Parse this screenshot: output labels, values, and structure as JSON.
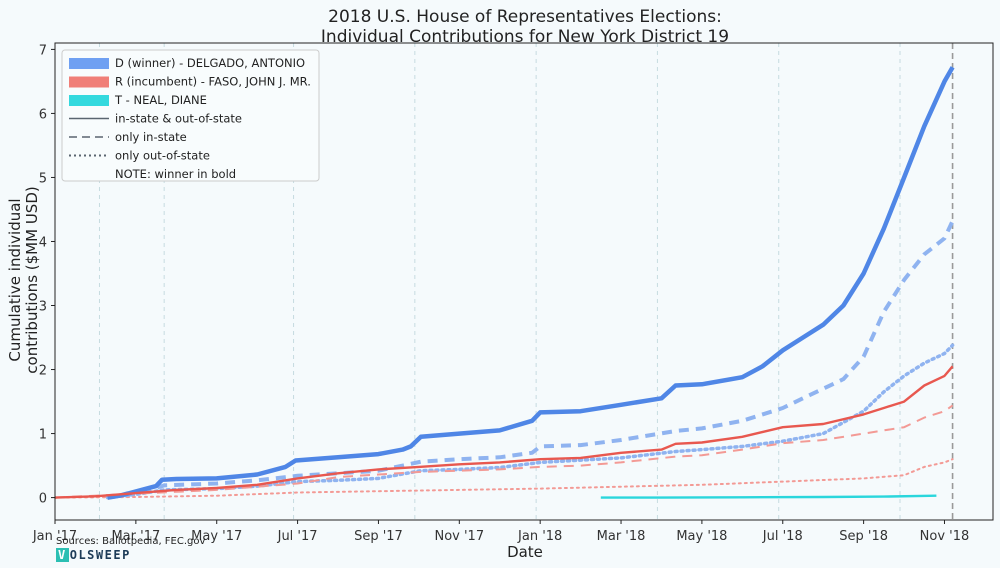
{
  "chart_data": {
    "type": "line",
    "title": "2018 U.S. House of Representatives Elections:",
    "subtitle": "Individual Contributions for New York District 19",
    "xlabel": "Date",
    "ylabel_line1": "Cumulative individual",
    "ylabel_line2": "contributions ($MM USD)",
    "ylim": [
      -0.35,
      7.1
    ],
    "xlim_months": [
      0,
      23.2
    ],
    "x_unit": "months since Jan 1 2017",
    "x_ticks": [
      {
        "label": "Jan '17",
        "m": 0
      },
      {
        "label": "Mar '17",
        "m": 2
      },
      {
        "label": "May '17",
        "m": 4
      },
      {
        "label": "Jul '17",
        "m": 6
      },
      {
        "label": "Sep '17",
        "m": 8
      },
      {
        "label": "Nov '17",
        "m": 10
      },
      {
        "label": "Jan '18",
        "m": 12
      },
      {
        "label": "Mar '18",
        "m": 14
      },
      {
        "label": "May '18",
        "m": 16
      },
      {
        "label": "Jul '18",
        "m": 18
      },
      {
        "label": "Sep '18",
        "m": 20
      },
      {
        "label": "Nov '18",
        "m": 22
      }
    ],
    "y_ticks": [
      0,
      1,
      2,
      3,
      4,
      5,
      6,
      7
    ],
    "vertical_grid_months": [
      1.1,
      2.7,
      5.9,
      8.9,
      11.9,
      14.9,
      17.9,
      20.9,
      22.2
    ],
    "election_day_month": 22.2,
    "legend_position": "top-left",
    "series": [
      {
        "name": "D (winner) - DELGADO, ANTONIO",
        "party": "D",
        "color": "#4f86e6",
        "light_color": "#8fb3f0",
        "legend_color": "#6fa0f2",
        "total": [
          [
            1.3,
            0
          ],
          [
            1.6,
            0.03
          ],
          [
            1.9,
            0.08
          ],
          [
            2.2,
            0.13
          ],
          [
            2.5,
            0.18
          ],
          [
            2.65,
            0.28
          ],
          [
            3,
            0.29
          ],
          [
            4,
            0.3
          ],
          [
            5,
            0.36
          ],
          [
            5.7,
            0.48
          ],
          [
            5.95,
            0.58
          ],
          [
            7,
            0.63
          ],
          [
            8,
            0.68
          ],
          [
            8.6,
            0.75
          ],
          [
            8.8,
            0.8
          ],
          [
            9.05,
            0.95
          ],
          [
            10,
            1.0
          ],
          [
            11,
            1.05
          ],
          [
            11.8,
            1.2
          ],
          [
            12,
            1.33
          ],
          [
            13,
            1.35
          ],
          [
            14,
            1.45
          ],
          [
            15,
            1.55
          ],
          [
            15.35,
            1.75
          ],
          [
            16,
            1.77
          ],
          [
            17,
            1.88
          ],
          [
            17.5,
            2.05
          ],
          [
            18,
            2.3
          ],
          [
            18.5,
            2.5
          ],
          [
            19,
            2.7
          ],
          [
            19.5,
            3.0
          ],
          [
            20,
            3.5
          ],
          [
            20.5,
            4.2
          ],
          [
            21,
            5.0
          ],
          [
            21.5,
            5.8
          ],
          [
            22,
            6.5
          ],
          [
            22.2,
            6.72
          ]
        ],
        "in_state": [
          [
            1.3,
            0
          ],
          [
            2,
            0.06
          ],
          [
            2.7,
            0.19
          ],
          [
            4,
            0.22
          ],
          [
            5,
            0.27
          ],
          [
            6,
            0.34
          ],
          [
            7,
            0.38
          ],
          [
            8,
            0.42
          ],
          [
            9.05,
            0.56
          ],
          [
            10,
            0.6
          ],
          [
            11,
            0.63
          ],
          [
            11.8,
            0.7
          ],
          [
            12,
            0.8
          ],
          [
            13,
            0.82
          ],
          [
            14,
            0.9
          ],
          [
            15.35,
            1.04
          ],
          [
            16,
            1.08
          ],
          [
            17,
            1.2
          ],
          [
            18,
            1.4
          ],
          [
            18.5,
            1.55
          ],
          [
            19,
            1.7
          ],
          [
            19.5,
            1.85
          ],
          [
            20,
            2.2
          ],
          [
            20.5,
            2.9
          ],
          [
            21,
            3.4
          ],
          [
            21.5,
            3.8
          ],
          [
            22,
            4.05
          ],
          [
            22.2,
            4.32
          ]
        ],
        "out_state": [
          [
            1.3,
            0
          ],
          [
            2,
            0.05
          ],
          [
            2.7,
            0.12
          ],
          [
            4,
            0.14
          ],
          [
            5,
            0.18
          ],
          [
            6,
            0.25
          ],
          [
            7,
            0.27
          ],
          [
            8,
            0.3
          ],
          [
            9.05,
            0.42
          ],
          [
            10,
            0.44
          ],
          [
            11,
            0.47
          ],
          [
            12,
            0.55
          ],
          [
            14,
            0.62
          ],
          [
            15.35,
            0.72
          ],
          [
            16,
            0.75
          ],
          [
            17,
            0.8
          ],
          [
            18,
            0.88
          ],
          [
            19,
            1.0
          ],
          [
            20,
            1.35
          ],
          [
            20.5,
            1.65
          ],
          [
            21,
            1.9
          ],
          [
            21.5,
            2.1
          ],
          [
            22,
            2.25
          ],
          [
            22.2,
            2.38
          ]
        ]
      },
      {
        "name": "R (incumbent) - FASO, JOHN J. MR.",
        "party": "R",
        "color": "#e8584f",
        "light_color": "#f39a95",
        "legend_color": "#f07f78",
        "total": [
          [
            0,
            0
          ],
          [
            1,
            0.02
          ],
          [
            2,
            0.07
          ],
          [
            3,
            0.12
          ],
          [
            4,
            0.15
          ],
          [
            5,
            0.2
          ],
          [
            6,
            0.3
          ],
          [
            7,
            0.38
          ],
          [
            8,
            0.44
          ],
          [
            9,
            0.48
          ],
          [
            10,
            0.52
          ],
          [
            11,
            0.55
          ],
          [
            12,
            0.6
          ],
          [
            13,
            0.62
          ],
          [
            14,
            0.7
          ],
          [
            15,
            0.75
          ],
          [
            15.35,
            0.84
          ],
          [
            16,
            0.86
          ],
          [
            17,
            0.95
          ],
          [
            18,
            1.1
          ],
          [
            19,
            1.15
          ],
          [
            20,
            1.3
          ],
          [
            20.5,
            1.4
          ],
          [
            21,
            1.5
          ],
          [
            21.5,
            1.75
          ],
          [
            22,
            1.9
          ],
          [
            22.2,
            2.05
          ]
        ],
        "in_state": [
          [
            0,
            0
          ],
          [
            2,
            0.06
          ],
          [
            4,
            0.12
          ],
          [
            6,
            0.22
          ],
          [
            7,
            0.32
          ],
          [
            8,
            0.36
          ],
          [
            9,
            0.4
          ],
          [
            10,
            0.42
          ],
          [
            11,
            0.44
          ],
          [
            12,
            0.48
          ],
          [
            13,
            0.5
          ],
          [
            14,
            0.55
          ],
          [
            15.35,
            0.64
          ],
          [
            16,
            0.66
          ],
          [
            17,
            0.75
          ],
          [
            18,
            0.85
          ],
          [
            19,
            0.9
          ],
          [
            20,
            1.0
          ],
          [
            21,
            1.1
          ],
          [
            21.5,
            1.25
          ],
          [
            22,
            1.35
          ],
          [
            22.2,
            1.44
          ]
        ],
        "out_state": [
          [
            0,
            0
          ],
          [
            2,
            0.01
          ],
          [
            4,
            0.03
          ],
          [
            6,
            0.08
          ],
          [
            8,
            0.1
          ],
          [
            10,
            0.12
          ],
          [
            12,
            0.14
          ],
          [
            14,
            0.17
          ],
          [
            16,
            0.2
          ],
          [
            18,
            0.25
          ],
          [
            20,
            0.3
          ],
          [
            21,
            0.35
          ],
          [
            21.5,
            0.48
          ],
          [
            22,
            0.55
          ],
          [
            22.2,
            0.6
          ]
        ]
      },
      {
        "name": "T - NEAL, DIANE",
        "party": "T",
        "color": "#2ad6dc",
        "legend_color": "#34d9de",
        "total": [
          [
            13.5,
            0
          ],
          [
            15,
            0
          ],
          [
            17,
            0.005
          ],
          [
            19,
            0.01
          ],
          [
            20.5,
            0.015
          ],
          [
            21.8,
            0.03
          ]
        ]
      }
    ],
    "line_style_legend": [
      {
        "label": "in-state & out-of-state",
        "style": "solid"
      },
      {
        "label": "only in-state",
        "style": "dashed"
      },
      {
        "label": "only out-of-state",
        "style": "dotted"
      }
    ],
    "note": "NOTE: winner in bold"
  },
  "footer": {
    "sources": "Sources: Ballotpedia, FEC.gov",
    "logo_v": "V",
    "logo_rest": "OLSWEEP"
  },
  "colors": {
    "background": "#f5fafc",
    "axis": "#222222",
    "grid": "#c6dbe0",
    "election_line": "#999999"
  }
}
